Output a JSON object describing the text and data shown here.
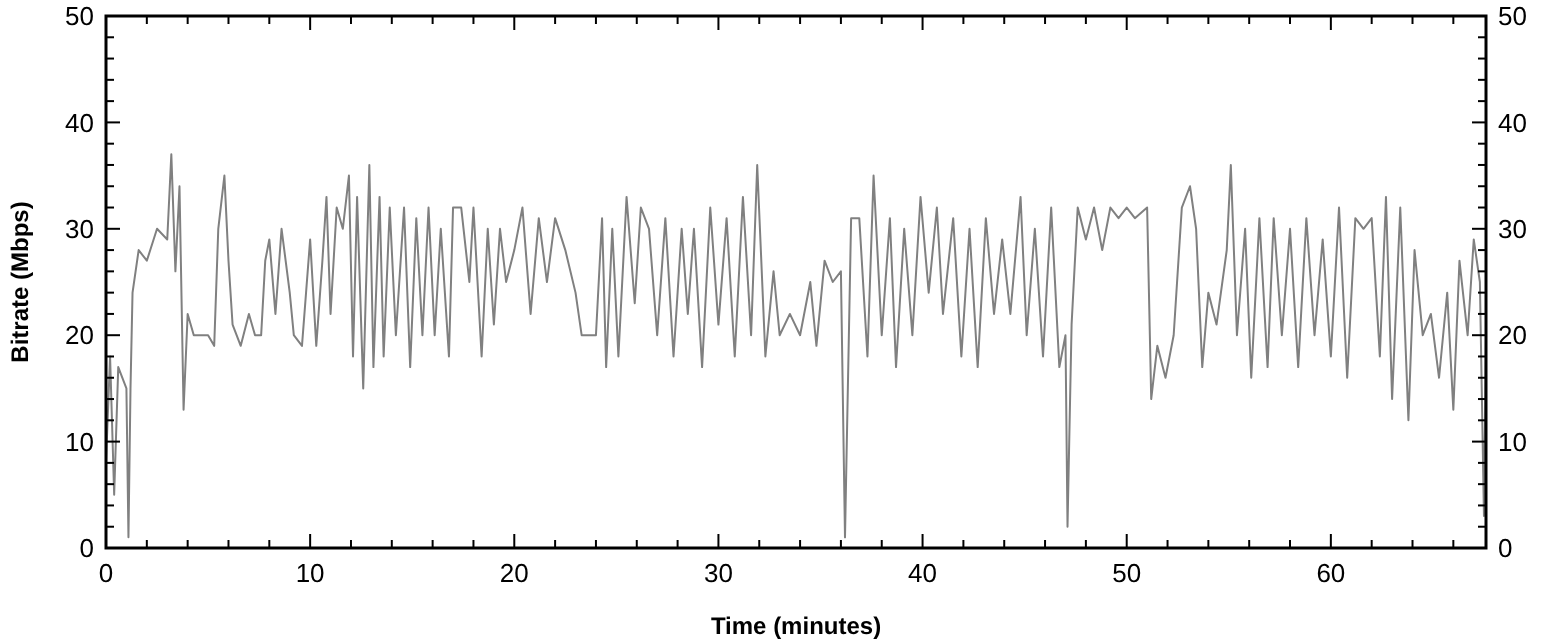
{
  "chart_data": {
    "type": "line",
    "xlabel": "Time (minutes)",
    "ylabel": "Bitrate (Mbps)",
    "xlim": [
      0,
      67.6
    ],
    "ylim": [
      0,
      50
    ],
    "y2lim": [
      0,
      50
    ],
    "xticks": [
      0,
      {
        "value": 2,
        "label": null
      },
      {
        "value": 4,
        "label": null
      },
      {
        "value": 6,
        "label": null
      },
      {
        "value": 8,
        "label": null
      },
      10,
      {
        "value": 12,
        "label": null
      },
      {
        "value": 14,
        "label": null
      },
      {
        "value": 16,
        "label": null
      },
      {
        "value": 18,
        "label": null
      },
      20,
      {
        "value": 22,
        "label": null
      },
      {
        "value": 24,
        "label": null
      },
      {
        "value": 26,
        "label": null
      },
      {
        "value": 28,
        "label": null
      },
      30,
      {
        "value": 32,
        "label": null
      },
      {
        "value": 34,
        "label": null
      },
      {
        "value": 36,
        "label": null
      },
      {
        "value": 38,
        "label": null
      },
      40,
      {
        "value": 42,
        "label": null
      },
      {
        "value": 44,
        "label": null
      },
      {
        "value": 46,
        "label": null
      },
      {
        "value": 48,
        "label": null
      },
      50,
      {
        "value": 52,
        "label": null
      },
      {
        "value": 54,
        "label": null
      },
      {
        "value": 56,
        "label": null
      },
      {
        "value": 58,
        "label": null
      },
      60,
      {
        "value": 62,
        "label": null
      },
      {
        "value": 64,
        "label": null
      },
      {
        "value": 66,
        "label": null
      }
    ],
    "yticks": [
      0,
      {
        "value": 2,
        "label": null
      },
      {
        "value": 4,
        "label": null
      },
      {
        "value": 6,
        "label": null
      },
      {
        "value": 8,
        "label": null
      },
      10,
      {
        "value": 12,
        "label": null
      },
      {
        "value": 14,
        "label": null
      },
      {
        "value": 16,
        "label": null
      },
      {
        "value": 18,
        "label": null
      },
      20,
      {
        "value": 22,
        "label": null
      },
      {
        "value": 24,
        "label": null
      },
      {
        "value": 26,
        "label": null
      },
      {
        "value": 28,
        "label": null
      },
      30,
      {
        "value": 32,
        "label": null
      },
      {
        "value": 34,
        "label": null
      },
      {
        "value": 36,
        "label": null
      },
      {
        "value": 38,
        "label": null
      },
      40,
      {
        "value": 42,
        "label": null
      },
      {
        "value": 44,
        "label": null
      },
      {
        "value": 46,
        "label": null
      },
      {
        "value": 48,
        "label": null
      },
      50
    ],
    "y2ticks": [
      0,
      {
        "value": 2,
        "label": null
      },
      {
        "value": 4,
        "label": null
      },
      {
        "value": 6,
        "label": null
      },
      {
        "value": 8,
        "label": null
      },
      10,
      {
        "value": 12,
        "label": null
      },
      {
        "value": 14,
        "label": null
      },
      {
        "value": 16,
        "label": null
      },
      {
        "value": 18,
        "label": null
      },
      20,
      {
        "value": 22,
        "label": null
      },
      {
        "value": 24,
        "label": null
      },
      {
        "value": 26,
        "label": null
      },
      {
        "value": 28,
        "label": null
      },
      30,
      {
        "value": 32,
        "label": null
      },
      {
        "value": 34,
        "label": null
      },
      {
        "value": 36,
        "label": null
      },
      {
        "value": 38,
        "label": null
      },
      40,
      {
        "value": 42,
        "label": null
      },
      {
        "value": 44,
        "label": null
      },
      {
        "value": 46,
        "label": null
      },
      {
        "value": 48,
        "label": null
      },
      50
    ],
    "grid": false,
    "marker": "none",
    "line_style": "solid",
    "series": [
      {
        "color": "#808080",
        "x": [
          0,
          0.2,
          0.4,
          0.6,
          1.0,
          1.1,
          1.2,
          1.3,
          1.6,
          2.0,
          2.5,
          3.0,
          3.2,
          3.4,
          3.6,
          3.8,
          4.0,
          4.3,
          5.0,
          5.3,
          5.5,
          5.8,
          6.0,
          6.2,
          6.6,
          7.0,
          7.3,
          7.6,
          7.8,
          8.0,
          8.3,
          8.6,
          9.0,
          9.2,
          9.6,
          9.8,
          10.0,
          10.3,
          10.6,
          10.8,
          11.0,
          11.3,
          11.6,
          11.9,
          12.1,
          12.3,
          12.6,
          12.9,
          13.1,
          13.4,
          13.6,
          13.9,
          14.2,
          14.6,
          14.9,
          15.2,
          15.5,
          15.8,
          16.1,
          16.4,
          16.8,
          17.0,
          17.4,
          17.8,
          18.0,
          18.4,
          18.7,
          19.0,
          19.3,
          19.6,
          20.0,
          20.4,
          20.8,
          21.2,
          21.6,
          22.0,
          22.5,
          23.0,
          23.3,
          24.0,
          24.3,
          24.5,
          24.8,
          25.1,
          25.5,
          25.9,
          26.2,
          26.6,
          27.0,
          27.4,
          27.8,
          28.2,
          28.5,
          28.8,
          29.2,
          29.6,
          30.0,
          30.4,
          30.8,
          31.2,
          31.6,
          31.9,
          32.3,
          32.7,
          33.0,
          33.5,
          34.0,
          34.5,
          34.8,
          35.2,
          35.6,
          36.0,
          36.2,
          36.5,
          36.9,
          37.3,
          37.6,
          38.0,
          38.4,
          38.7,
          39.1,
          39.5,
          39.9,
          40.3,
          40.7,
          41.0,
          41.5,
          41.9,
          42.3,
          42.7,
          43.1,
          43.5,
          43.9,
          44.3,
          44.8,
          45.1,
          45.5,
          45.9,
          46.3,
          46.7,
          47.0,
          47.1,
          47.3,
          47.6,
          48.0,
          48.4,
          48.8,
          49.2,
          49.6,
          50.0,
          50.4,
          51.0,
          51.2,
          51.5,
          51.9,
          52.3,
          52.7,
          53.1,
          53.4,
          53.7,
          54.0,
          54.4,
          54.9,
          55.1,
          55.4,
          55.8,
          56.1,
          56.5,
          56.9,
          57.2,
          57.6,
          58.0,
          58.4,
          58.8,
          59.2,
          59.6,
          60.0,
          60.4,
          60.8,
          61.2,
          61.6,
          62.0,
          62.4,
          62.7,
          63.0,
          63.4,
          63.8,
          64.1,
          64.5,
          64.9,
          65.3,
          65.7,
          66.0,
          66.3,
          66.7,
          67.0,
          67.3,
          67.5,
          67.6
        ],
        "values": [
          8,
          18,
          5,
          17,
          15,
          1,
          15,
          24,
          28,
          27,
          30,
          29,
          37,
          26,
          34,
          13,
          22,
          20,
          20,
          19,
          30,
          35,
          27,
          21,
          19,
          22,
          20,
          20,
          27,
          29,
          22,
          30,
          24,
          20,
          19,
          24,
          29,
          19,
          27,
          33,
          22,
          32,
          30,
          35,
          18,
          33,
          15,
          36,
          17,
          33,
          18,
          32,
          20,
          32,
          17,
          31,
          20,
          32,
          20,
          30,
          18,
          32,
          32,
          25,
          32,
          18,
          30,
          21,
          30,
          25,
          28,
          32,
          22,
          31,
          25,
          31,
          28,
          24,
          20,
          20,
          31,
          17,
          30,
          18,
          33,
          23,
          32,
          30,
          20,
          31,
          18,
          30,
          22,
          30,
          17,
          32,
          21,
          31,
          18,
          33,
          20,
          36,
          18,
          26,
          20,
          22,
          20,
          25,
          19,
          27,
          25,
          26,
          1,
          31,
          31,
          18,
          35,
          20,
          31,
          17,
          30,
          20,
          33,
          24,
          32,
          22,
          31,
          18,
          30,
          17,
          31,
          22,
          29,
          22,
          33,
          20,
          30,
          18,
          32,
          17,
          20,
          2,
          21,
          32,
          29,
          32,
          28,
          32,
          31,
          32,
          31,
          32,
          14,
          19,
          16,
          20,
          32,
          34,
          30,
          17,
          24,
          21,
          28,
          36,
          20,
          30,
          16,
          31,
          17,
          31,
          20,
          30,
          17,
          31,
          20,
          29,
          18,
          32,
          16,
          31,
          30,
          31,
          18,
          33,
          14,
          32,
          12,
          28,
          20,
          22,
          16,
          24,
          13,
          27,
          20,
          29,
          25,
          3,
          20
        ]
      }
    ]
  }
}
